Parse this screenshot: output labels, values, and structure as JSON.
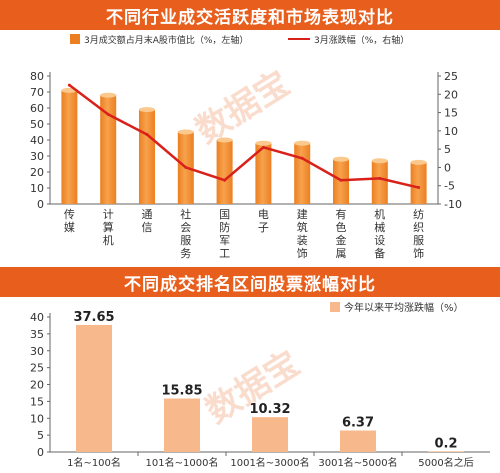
{
  "colors": {
    "title_bg": "#e85f1d",
    "bar_light": "#f7a24d",
    "bar_dark": "#ec7f21",
    "line": "#d9211b",
    "bar2": "#f7b98c",
    "axis": "#666666"
  },
  "watermark": "数据宝",
  "chart_data": [
    {
      "type": "bar",
      "title": "不同行业成交活跃度和市场表现对比",
      "categories": [
        "传\n媒",
        "计\n算\n机",
        "通\n信",
        "社\n会\n服\n务",
        "国\n防\n军\n工",
        "电\n子",
        "建\n筑\n装\n饰",
        "有\n色\n金\n属",
        "机\n械\n设\n备",
        "纺\n织\n服\n饰"
      ],
      "series": [
        {
          "name": "3月成交额占月末A股市值比（%，左轴）",
          "type": "bar",
          "axis": "left",
          "values": [
            71,
            68,
            59,
            45,
            40,
            38,
            38,
            28,
            27,
            26
          ]
        },
        {
          "name": "3月涨跌幅（%，右轴）",
          "type": "line",
          "axis": "right",
          "values": [
            22.5,
            14.5,
            9,
            0,
            -3.5,
            5.5,
            2.5,
            -3.5,
            -3,
            -5.5
          ]
        }
      ],
      "ylim_left": [
        0,
        80
      ],
      "yticks_left": [
        0,
        10,
        20,
        30,
        40,
        50,
        60,
        70,
        80
      ],
      "ylim_right": [
        -10,
        25
      ],
      "yticks_right": [
        -10,
        -5,
        0,
        5,
        10,
        15,
        20,
        25
      ],
      "legend": "top"
    },
    {
      "type": "bar",
      "title": "不同成交排名区间股票涨幅对比",
      "categories": [
        "1名~100名",
        "101名~1000名",
        "1001名~3000名",
        "3001名~5000名",
        "5000名之后"
      ],
      "series": [
        {
          "name": "今年以来平均涨跌幅（%）",
          "values": [
            37.65,
            15.85,
            10.32,
            6.37,
            0.2
          ]
        }
      ],
      "data_labels": [
        "37.65",
        "15.85",
        "10.32",
        "6.37",
        "0.2"
      ],
      "ylim": [
        0,
        40
      ],
      "yticks": [
        0,
        5,
        10,
        15,
        20,
        25,
        30,
        35,
        40
      ],
      "legend": "top-right"
    }
  ]
}
